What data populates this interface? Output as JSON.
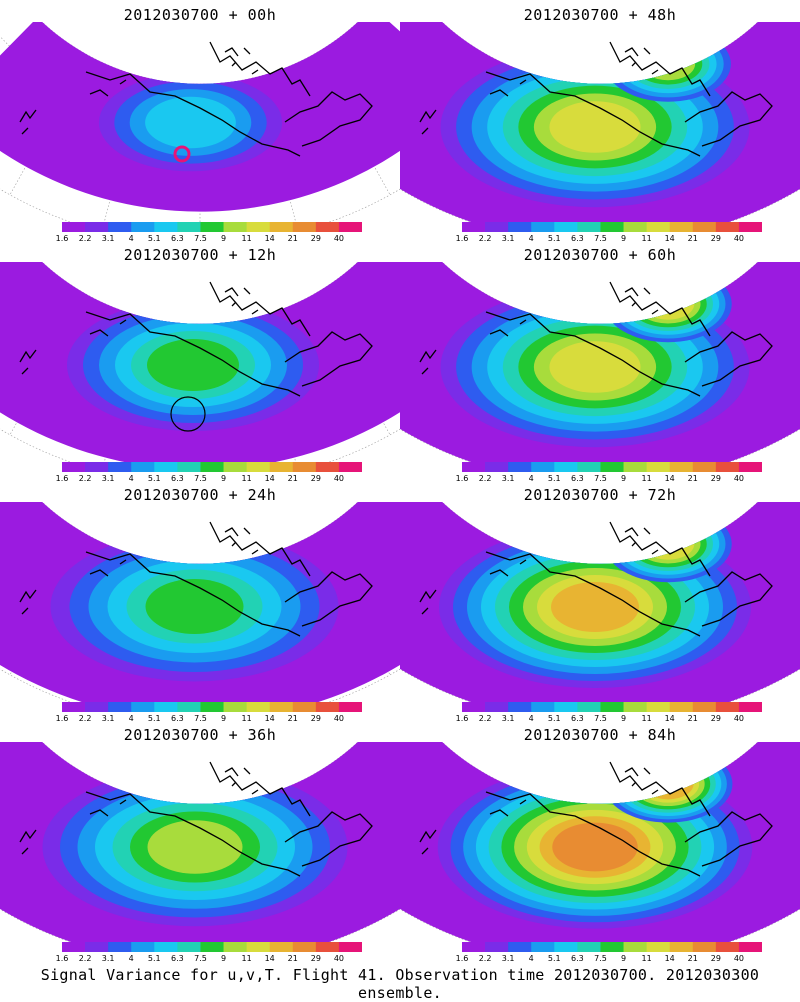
{
  "panels": [
    {
      "title": "2012030700 + 00h",
      "level": 0.4,
      "spread": 0.55,
      "circle": "magenta"
    },
    {
      "title": "2012030700 + 12h",
      "level": 0.5,
      "spread": 0.8,
      "circle": "black"
    },
    {
      "title": "2012030700 + 24h",
      "level": 0.58,
      "spread": 0.95,
      "circle": ""
    },
    {
      "title": "2012030700 + 36h",
      "level": 0.66,
      "spread": 1.0,
      "circle": ""
    },
    {
      "title": "2012030700 + 48h",
      "level": 0.7,
      "spread": 1.0,
      "circle": ""
    },
    {
      "title": "2012030700 + 60h",
      "level": 0.76,
      "spread": 1.0,
      "circle": ""
    },
    {
      "title": "2012030700 + 72h",
      "level": 0.82,
      "spread": 1.0,
      "circle": ""
    },
    {
      "title": "2012030700 + 84h",
      "level": 0.9,
      "spread": 1.0,
      "circle": ""
    }
  ],
  "colorbar": {
    "labels": [
      "1.6",
      "2.2",
      "3.1",
      "4",
      "5.1",
      "6.3",
      "7.5",
      "9",
      "11",
      "14",
      "21",
      "29",
      "40"
    ],
    "colors": [
      "#9b1be0",
      "#7a2ce8",
      "#2e5cf0",
      "#1a9cf0",
      "#1ac8f0",
      "#22d2b4",
      "#22c832",
      "#a8dc3c",
      "#d8dc3c",
      "#e8b432",
      "#e88c32",
      "#e8503c",
      "#e61478"
    ]
  },
  "caption": "Signal Variance for u,v,T. Flight 41. Observation time 2012030700. 2012030300 ensemble."
}
